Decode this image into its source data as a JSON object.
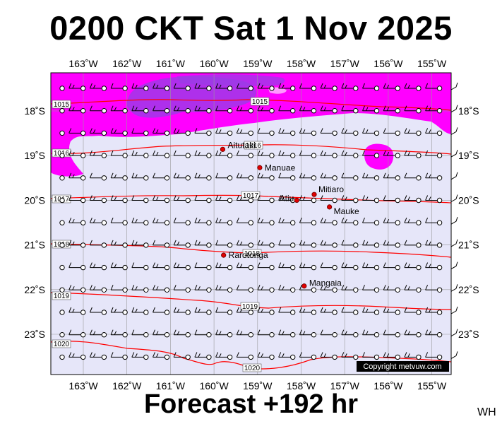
{
  "title": "0200 CKT Sat 1 Nov 2025",
  "footer": "Forecast +192 hr",
  "corner_tag": "WH",
  "copyright": "Copyright metvuw.com",
  "colors": {
    "sea": "#e6e6f9",
    "rain_light": "#ff00ff",
    "rain_heavy": "#9a3ce6",
    "isobar": "#ff0000",
    "place_dot": "#e00000"
  },
  "axes": {
    "lon_labels": [
      "163˚W",
      "162˚W",
      "161˚W",
      "160˚W",
      "159˚W",
      "158˚W",
      "157˚W",
      "156˚W",
      "155˚W"
    ],
    "lat_labels": [
      "18˚S",
      "19˚S",
      "20˚S",
      "21˚S",
      "22˚S",
      "23˚S"
    ]
  },
  "places": [
    {
      "name": "Aitutaki",
      "lon": -159.8,
      "lat": -18.86
    },
    {
      "name": "Manuae",
      "lon": -158.95,
      "lat": -19.27
    },
    {
      "name": "Mitiaro",
      "lon": -157.7,
      "lat": -19.87
    },
    {
      "name": "Atiu",
      "lon": -158.1,
      "lat": -20.0
    },
    {
      "name": "Mauke",
      "lon": -157.35,
      "lat": -20.15
    },
    {
      "name": "Rarotonga",
      "lon": -159.78,
      "lat": -21.23
    },
    {
      "name": "Mangaia",
      "lon": -157.93,
      "lat": -21.92
    }
  ],
  "isobar_labels": [
    "1015",
    "1015",
    "1016",
    "1016",
    "1017",
    "1017",
    "1018",
    "1018",
    "1019",
    "1019",
    "1020",
    "1020"
  ]
}
